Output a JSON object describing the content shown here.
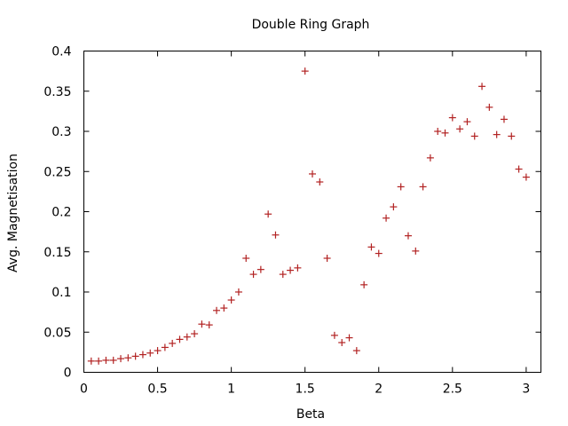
{
  "chart_data": {
    "type": "scatter",
    "title": "Double Ring Graph",
    "xlabel": "Beta",
    "ylabel": "Avg. Magnetisation",
    "xlim": [
      0,
      3.1
    ],
    "ylim": [
      0,
      0.4
    ],
    "xticks": [
      {
        "value": 0,
        "label": "0"
      },
      {
        "value": 0.5,
        "label": "0.5"
      },
      {
        "value": 1,
        "label": "1"
      },
      {
        "value": 1.5,
        "label": "1.5"
      },
      {
        "value": 2,
        "label": "2"
      },
      {
        "value": 2.5,
        "label": "2.5"
      },
      {
        "value": 3,
        "label": "3"
      }
    ],
    "yticks": [
      {
        "value": 0,
        "label": "0"
      },
      {
        "value": 0.05,
        "label": "0.05"
      },
      {
        "value": 0.1,
        "label": "0.1"
      },
      {
        "value": 0.15,
        "label": "0.15"
      },
      {
        "value": 0.2,
        "label": "0.2"
      },
      {
        "value": 0.25,
        "label": "0.25"
      },
      {
        "value": 0.3,
        "label": "0.3"
      },
      {
        "value": 0.35,
        "label": "0.35"
      },
      {
        "value": 0.4,
        "label": "0.4"
      }
    ],
    "grid": false,
    "marker": "+",
    "color": "#b22222",
    "series": [
      {
        "points": [
          [
            0.05,
            0.014
          ],
          [
            0.1,
            0.014
          ],
          [
            0.15,
            0.015
          ],
          [
            0.2,
            0.015
          ],
          [
            0.25,
            0.017
          ],
          [
            0.3,
            0.018
          ],
          [
            0.35,
            0.02
          ],
          [
            0.4,
            0.022
          ],
          [
            0.45,
            0.024
          ],
          [
            0.5,
            0.027
          ],
          [
            0.55,
            0.031
          ],
          [
            0.6,
            0.036
          ],
          [
            0.65,
            0.041
          ],
          [
            0.7,
            0.044
          ],
          [
            0.75,
            0.048
          ],
          [
            0.8,
            0.06
          ],
          [
            0.85,
            0.059
          ],
          [
            0.9,
            0.077
          ],
          [
            0.95,
            0.08
          ],
          [
            1.0,
            0.09
          ],
          [
            1.05,
            0.1
          ],
          [
            1.1,
            0.142
          ],
          [
            1.15,
            0.122
          ],
          [
            1.2,
            0.128
          ],
          [
            1.25,
            0.197
          ],
          [
            1.3,
            0.171
          ],
          [
            1.35,
            0.122
          ],
          [
            1.4,
            0.127
          ],
          [
            1.45,
            0.13
          ],
          [
            1.5,
            0.375
          ],
          [
            1.55,
            0.247
          ],
          [
            1.6,
            0.237
          ],
          [
            1.65,
            0.142
          ],
          [
            1.7,
            0.046
          ],
          [
            1.75,
            0.037
          ],
          [
            1.8,
            0.043
          ],
          [
            1.85,
            0.027
          ],
          [
            1.9,
            0.109
          ],
          [
            1.95,
            0.156
          ],
          [
            2.0,
            0.148
          ],
          [
            2.05,
            0.192
          ],
          [
            2.1,
            0.206
          ],
          [
            2.15,
            0.231
          ],
          [
            2.2,
            0.17
          ],
          [
            2.25,
            0.151
          ],
          [
            2.3,
            0.231
          ],
          [
            2.35,
            0.267
          ],
          [
            2.4,
            0.3
          ],
          [
            2.45,
            0.298
          ],
          [
            2.5,
            0.317
          ],
          [
            2.55,
            0.303
          ],
          [
            2.6,
            0.312
          ],
          [
            2.65,
            0.294
          ],
          [
            2.7,
            0.356
          ],
          [
            2.75,
            0.33
          ],
          [
            2.8,
            0.296
          ],
          [
            2.85,
            0.315
          ],
          [
            2.9,
            0.294
          ],
          [
            2.95,
            0.253
          ],
          [
            3.0,
            0.243
          ]
        ]
      }
    ]
  }
}
